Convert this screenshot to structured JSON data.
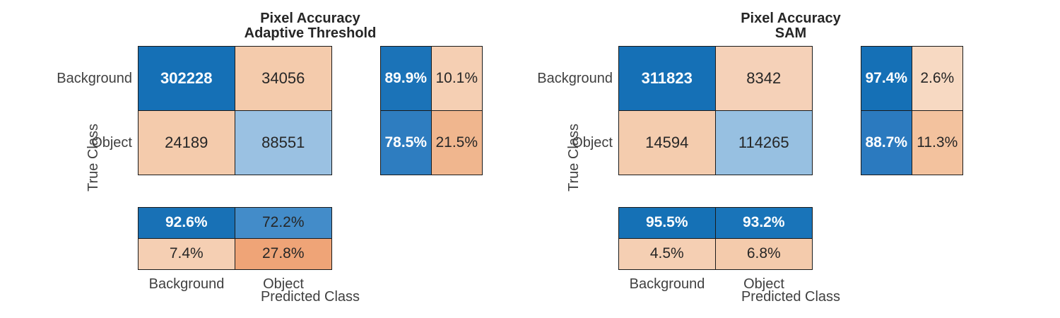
{
  "figure": {
    "background": "#ffffff",
    "border_color": "#1a1a1a",
    "text_dark": "#262626",
    "text_label": "#404040"
  },
  "charts": [
    {
      "title_line1": "Pixel Accuracy",
      "title_line2": "Adaptive Threshold",
      "ylabel": "True Class",
      "xlabel": "Predicted Class",
      "row_tick_labels": [
        "Background",
        "Object"
      ],
      "col_tick_labels": [
        "Background",
        "Object"
      ],
      "matrix_cells": [
        [
          {
            "t": "302228",
            "bg": "#1570b6",
            "fg": "#ffffff"
          },
          {
            "t": "34056",
            "bg": "#f4cbac",
            "fg": "#262626"
          }
        ],
        [
          {
            "t": "24189",
            "bg": "#f4cbac",
            "fg": "#262626"
          },
          {
            "t": "88551",
            "bg": "#9ac1e2",
            "fg": "#262626"
          }
        ]
      ],
      "row_summary_cells": [
        [
          {
            "t": "89.9%",
            "bg": "#1b73b8",
            "fg": "#ffffff"
          },
          {
            "t": "10.1%",
            "bg": "#f5cfb3",
            "fg": "#262626"
          }
        ],
        [
          {
            "t": "78.5%",
            "bg": "#2e7dc0",
            "fg": "#ffffff"
          },
          {
            "t": "21.5%",
            "bg": "#f0b68e",
            "fg": "#262626"
          }
        ]
      ],
      "col_summary_cells": [
        [
          {
            "t": "92.6%",
            "bg": "#1871b6",
            "fg": "#ffffff"
          },
          {
            "t": "72.2%",
            "bg": "#438cc9",
            "fg": "#262626"
          }
        ],
        [
          {
            "t": "7.4%",
            "bg": "#f5cfb3",
            "fg": "#262626"
          },
          {
            "t": "27.8%",
            "bg": "#efa477",
            "fg": "#262626"
          }
        ]
      ]
    },
    {
      "title_line1": "Pixel Accuracy",
      "title_line2": "SAM",
      "ylabel": "True Class",
      "xlabel": "Predicted Class",
      "row_tick_labels": [
        "Background",
        "Object"
      ],
      "col_tick_labels": [
        "Background",
        "Object"
      ],
      "matrix_cells": [
        [
          {
            "t": "311823",
            "bg": "#1570b6",
            "fg": "#ffffff"
          },
          {
            "t": "8342",
            "bg": "#f5d1b8",
            "fg": "#262626"
          }
        ],
        [
          {
            "t": "14594",
            "bg": "#f4ccae",
            "fg": "#262626"
          },
          {
            "t": "114265",
            "bg": "#97c0e1",
            "fg": "#262626"
          }
        ]
      ],
      "row_summary_cells": [
        [
          {
            "t": "97.4%",
            "bg": "#1570b6",
            "fg": "#ffffff"
          },
          {
            "t": "2.6%",
            "bg": "#f7d9c2",
            "fg": "#262626"
          }
        ],
        [
          {
            "t": "88.7%",
            "bg": "#2b7abf",
            "fg": "#ffffff"
          },
          {
            "t": "11.3%",
            "bg": "#f3c29e",
            "fg": "#262626"
          }
        ]
      ],
      "col_summary_cells": [
        [
          {
            "t": "95.5%",
            "bg": "#1571b6",
            "fg": "#ffffff"
          },
          {
            "t": "93.2%",
            "bg": "#1974b9",
            "fg": "#ffffff"
          }
        ],
        [
          {
            "t": "4.5%",
            "bg": "#f5cfb3",
            "fg": "#262626"
          },
          {
            "t": "6.8%",
            "bg": "#f4cbac",
            "fg": "#262626"
          }
        ]
      ]
    }
  ],
  "chart_data": [
    {
      "type": "heatmap",
      "title": "Pixel Accuracy Adaptive Threshold",
      "xlabel": "Predicted Class",
      "ylabel": "True Class",
      "classes": [
        "Background",
        "Object"
      ],
      "counts": [
        [
          302228,
          34056
        ],
        [
          24189,
          88551
        ]
      ],
      "row_summary_pct": [
        [
          89.9,
          10.1
        ],
        [
          78.5,
          21.5
        ]
      ],
      "col_summary_pct": [
        [
          92.6,
          72.2
        ],
        [
          7.4,
          27.8
        ]
      ],
      "legend_position": "none",
      "grid": false
    },
    {
      "type": "heatmap",
      "title": "Pixel Accuracy SAM",
      "xlabel": "Predicted Class",
      "ylabel": "True Class",
      "classes": [
        "Background",
        "Object"
      ],
      "counts": [
        [
          311823,
          8342
        ],
        [
          14594,
          114265
        ]
      ],
      "row_summary_pct": [
        [
          97.4,
          2.6
        ],
        [
          88.7,
          11.3
        ]
      ],
      "col_summary_pct": [
        [
          95.5,
          93.2
        ],
        [
          4.5,
          6.8
        ]
      ],
      "legend_position": "none",
      "grid": false
    }
  ]
}
